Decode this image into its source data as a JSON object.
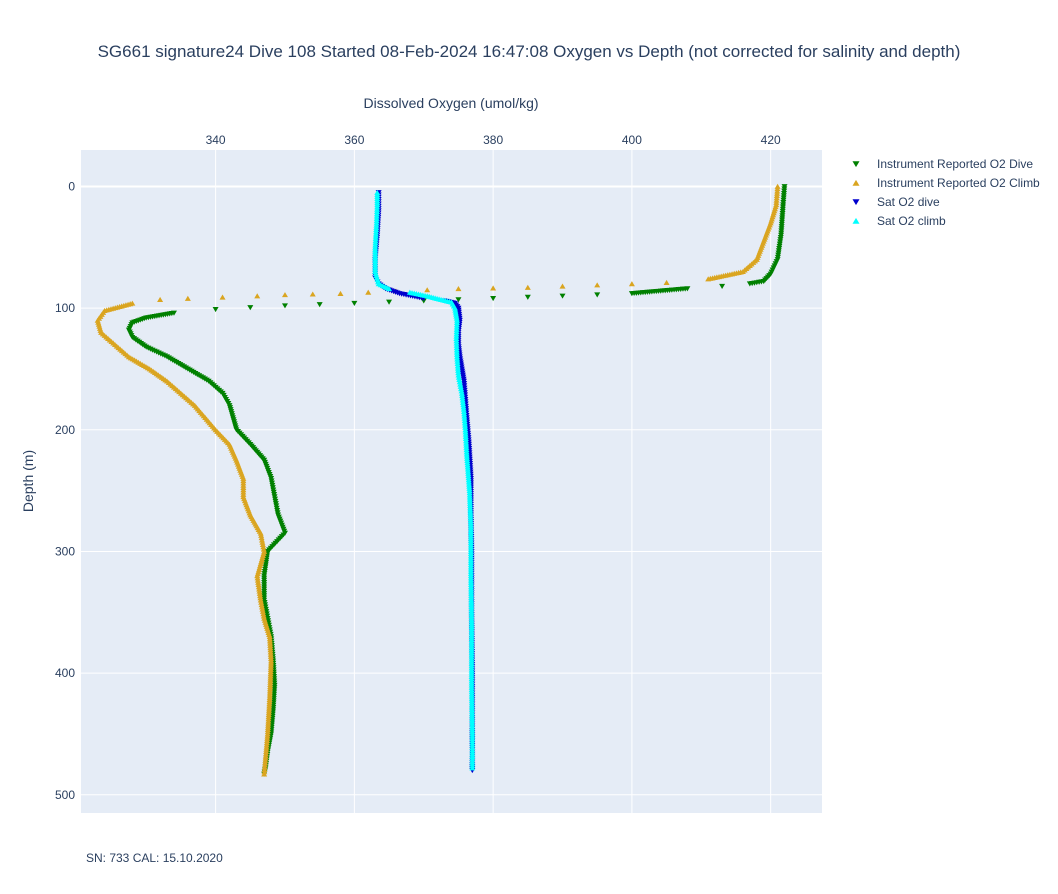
{
  "chart_data": {
    "type": "scatter",
    "title": "SG661 signature24 Dive 108 Started 08-Feb-2024 16:47:08  Oxygen vs Depth (not corrected for salinity and depth)",
    "xlabel": "Dissolved Oxygen (umol/kg)",
    "ylabel": "Depth (m)",
    "xlim": [
      320.6,
      427.4
    ],
    "ylim": [
      515,
      -30
    ],
    "y_reversed": true,
    "x_axis_side": "top",
    "x_ticks": [
      340,
      360,
      380,
      400,
      420
    ],
    "y_ticks": [
      0,
      100,
      200,
      300,
      400,
      500
    ],
    "grid": true,
    "legend_position": "right",
    "footnote": "SN: 733  CAL: 15.10.2020",
    "series": [
      {
        "name": "Instrument Reported O2 Dive",
        "color": "#008000",
        "marker": "triangle-down",
        "points": [
          [
            422,
            0
          ],
          [
            421.8,
            15
          ],
          [
            421.5,
            40
          ],
          [
            421,
            60
          ],
          [
            420,
            72
          ],
          [
            419,
            78
          ],
          [
            417,
            80
          ],
          [
            413,
            82
          ],
          [
            408,
            84
          ],
          [
            400,
            88
          ],
          [
            390,
            90
          ],
          [
            380,
            92
          ],
          [
            370,
            94
          ],
          [
            360,
            96
          ],
          [
            350,
            98
          ],
          [
            340,
            101
          ],
          [
            334,
            104
          ],
          [
            330,
            108
          ],
          [
            328,
            112
          ],
          [
            327.5,
            118
          ],
          [
            328,
            124
          ],
          [
            330,
            132
          ],
          [
            333,
            140
          ],
          [
            336,
            150
          ],
          [
            339,
            160
          ],
          [
            341,
            170
          ],
          [
            342,
            180
          ],
          [
            342.5,
            190
          ],
          [
            343,
            200
          ],
          [
            345,
            212
          ],
          [
            347,
            225
          ],
          [
            348,
            240
          ],
          [
            348.5,
            255
          ],
          [
            349,
            270
          ],
          [
            350,
            285
          ],
          [
            347.5,
            300
          ],
          [
            347,
            320
          ],
          [
            347,
            340
          ],
          [
            347.5,
            355
          ],
          [
            348,
            370
          ],
          [
            348.3,
            390
          ],
          [
            348.5,
            410
          ],
          [
            348.3,
            430
          ],
          [
            348,
            450
          ],
          [
            347.5,
            465
          ],
          [
            347.2,
            478
          ],
          [
            347,
            483
          ]
        ]
      },
      {
        "name": "Instrument Reported O2 Climb",
        "color": "#DAA520",
        "marker": "triangle-up",
        "points": [
          [
            347,
            483
          ],
          [
            347.2,
            470
          ],
          [
            347.5,
            450
          ],
          [
            347.8,
            420
          ],
          [
            348,
            390
          ],
          [
            347.8,
            370
          ],
          [
            347,
            355
          ],
          [
            346.5,
            340
          ],
          [
            346,
            320
          ],
          [
            347,
            300
          ],
          [
            346.5,
            285
          ],
          [
            345,
            270
          ],
          [
            344,
            255
          ],
          [
            344,
            240
          ],
          [
            343,
            225
          ],
          [
            342,
            212
          ],
          [
            340,
            200
          ],
          [
            338.5,
            190
          ],
          [
            337,
            180
          ],
          [
            335,
            170
          ],
          [
            333,
            160
          ],
          [
            330.5,
            150
          ],
          [
            327.5,
            140
          ],
          [
            325.5,
            130
          ],
          [
            323.5,
            120
          ],
          [
            323,
            110
          ],
          [
            324,
            102
          ],
          [
            328,
            96
          ],
          [
            332,
            93
          ],
          [
            336,
            92
          ],
          [
            341,
            91
          ],
          [
            346,
            90
          ],
          [
            350,
            89
          ],
          [
            358,
            88
          ],
          [
            366,
            86
          ],
          [
            375,
            84
          ],
          [
            385,
            83
          ],
          [
            395,
            81
          ],
          [
            405,
            79
          ],
          [
            411,
            76
          ],
          [
            416,
            70
          ],
          [
            418,
            60
          ],
          [
            419,
            45
          ],
          [
            420,
            30
          ],
          [
            420.8,
            15
          ],
          [
            421,
            0
          ]
        ]
      },
      {
        "name": "Sat O2 dive",
        "color": "#0000CD",
        "marker": "triangle-down",
        "points": [
          [
            363.5,
            5
          ],
          [
            363.5,
            20
          ],
          [
            363.3,
            40
          ],
          [
            363,
            60
          ],
          [
            363,
            75
          ],
          [
            363.5,
            80
          ],
          [
            364.5,
            84
          ],
          [
            366.5,
            88
          ],
          [
            370,
            92
          ],
          [
            373,
            94
          ],
          [
            374.5,
            96
          ],
          [
            375,
            100
          ],
          [
            375.2,
            110
          ],
          [
            375,
            120
          ],
          [
            375,
            130
          ],
          [
            375.2,
            140
          ],
          [
            375.5,
            150
          ],
          [
            375.8,
            160
          ],
          [
            376,
            175
          ],
          [
            376.2,
            190
          ],
          [
            376.5,
            210
          ],
          [
            376.8,
            240
          ],
          [
            376.8,
            270
          ],
          [
            376.9,
            300
          ],
          [
            376.9,
            350
          ],
          [
            377,
            400
          ],
          [
            377,
            440
          ],
          [
            377,
            470
          ],
          [
            377,
            480
          ]
        ]
      },
      {
        "name": "Sat O2 climb",
        "color": "#00FFFF",
        "marker": "triangle-up",
        "points": [
          [
            377,
            478
          ],
          [
            377,
            450
          ],
          [
            376.9,
            410
          ],
          [
            376.9,
            360
          ],
          [
            376.8,
            320
          ],
          [
            376.8,
            280
          ],
          [
            376.6,
            250
          ],
          [
            376.2,
            220
          ],
          [
            376,
            200
          ],
          [
            375.8,
            185
          ],
          [
            375.5,
            170
          ],
          [
            375,
            155
          ],
          [
            374.8,
            140
          ],
          [
            374.7,
            125
          ],
          [
            374.8,
            110
          ],
          [
            374.5,
            100
          ],
          [
            374,
            95
          ],
          [
            372.5,
            93
          ],
          [
            370.5,
            90
          ],
          [
            368,
            87
          ],
          [
            365,
            84
          ],
          [
            363.5,
            80
          ],
          [
            363,
            70
          ],
          [
            363,
            50
          ],
          [
            363.2,
            30
          ],
          [
            363.3,
            15
          ],
          [
            363.3,
            5
          ]
        ]
      }
    ]
  }
}
